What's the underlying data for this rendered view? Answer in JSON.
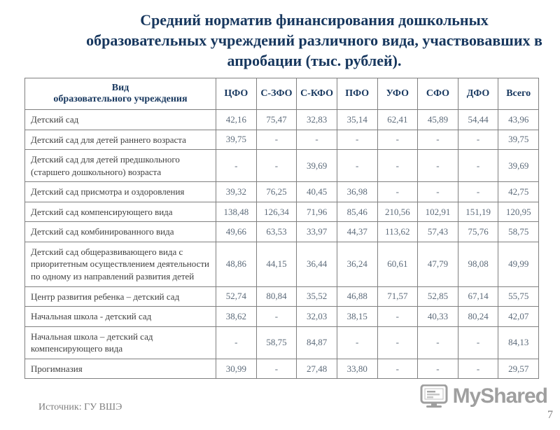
{
  "slide": {
    "title": "Средний норматив финансирования дошкольных образовательных учреждений различного вида, участвовавших в апробации (тыс. рублей).",
    "source": "Источник: ГУ ВШЭ",
    "page_number": "7",
    "watermark": "MyShared"
  },
  "table": {
    "header_col": "Вид\nобразовательного учреждения",
    "columns": [
      "ЦФО",
      "С-ЗФО",
      "С-КФО",
      "ПФО",
      "УФО",
      "СФО",
      "ДФО",
      "Всего"
    ],
    "rows": [
      {
        "label": "Детский сад",
        "values": [
          "42,16",
          "75,47",
          "32,83",
          "35,14",
          "62,41",
          "45,89",
          "54,44",
          "43,96"
        ]
      },
      {
        "label": "Детский сад для детей раннего возраста",
        "values": [
          "39,75",
          "-",
          "-",
          "-",
          "-",
          "-",
          "-",
          "39,75"
        ]
      },
      {
        "label": "Детский сад для детей предшкольного (старшего дошкольного) возраста",
        "values": [
          "-",
          "-",
          "39,69",
          "-",
          "-",
          "-",
          "-",
          "39,69"
        ]
      },
      {
        "label": "Детский сад присмотра и оздоровления",
        "values": [
          "39,32",
          "76,25",
          "40,45",
          "36,98",
          "-",
          "-",
          "-",
          "42,75"
        ]
      },
      {
        "label": "Детский сад компенсирующего вида",
        "values": [
          "138,48",
          "126,34",
          "71,96",
          "85,46",
          "210,56",
          "102,91",
          "151,19",
          "120,95"
        ]
      },
      {
        "label": "Детский сад комбинированного вида",
        "values": [
          "49,66",
          "63,53",
          "33,97",
          "44,37",
          "113,62",
          "57,43",
          "75,76",
          "58,75"
        ]
      },
      {
        "label": "Детский сад общеразвивающего вида с приоритетным осуществлением деятельности по одному из направлений развития детей",
        "values": [
          "48,86",
          "44,15",
          "36,44",
          "36,24",
          "60,61",
          "47,79",
          "98,08",
          "49,99"
        ]
      },
      {
        "label": "Центр развития ребенка – детский сад",
        "values": [
          "52,74",
          "80,84",
          "35,52",
          "46,88",
          "71,57",
          "52,85",
          "67,14",
          "55,75"
        ]
      },
      {
        "label": "Начальная  школа - детский сад",
        "values": [
          "38,62",
          "-",
          "32,03",
          "38,15",
          "-",
          "40,33",
          "80,24",
          "42,07"
        ]
      },
      {
        "label": "Начальная школа – детский сад компенсирующего вида",
        "values": [
          "-",
          "58,75",
          "84,87",
          "-",
          "-",
          "-",
          "-",
          "84,13"
        ]
      },
      {
        "label": "Прогимназия",
        "values": [
          "30,99",
          "-",
          "27,48",
          "33,80",
          "-",
          "-",
          "-",
          "29,57"
        ]
      }
    ]
  },
  "colors": {
    "title_color": "#17375E",
    "label_color": "#404040",
    "value_color": "#5d6b7a",
    "border_color": "#808080",
    "footer_color": "#808080",
    "watermark_color": "#8f8f8f"
  }
}
